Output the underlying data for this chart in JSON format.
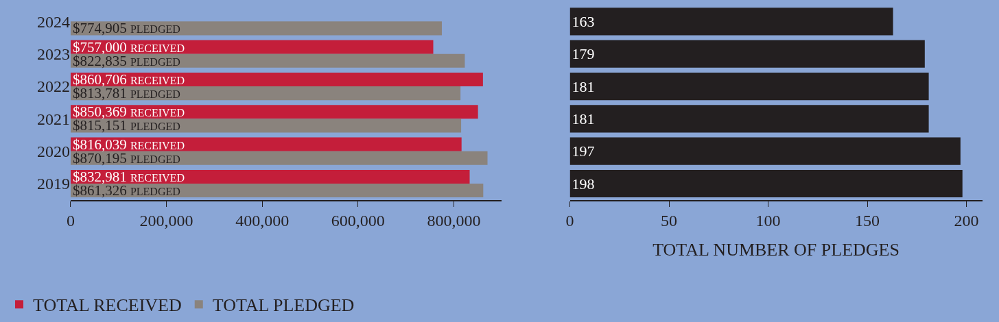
{
  "chart_data": [
    {
      "type": "bar",
      "orientation": "horizontal",
      "categories": [
        "2024",
        "2023",
        "2022",
        "2021",
        "2020",
        "2019"
      ],
      "series": [
        {
          "name": "TOTAL RECEIVED",
          "color": "#c41e3a",
          "values": [
            null,
            757000,
            860706,
            850369,
            816039,
            832981
          ],
          "value_labels": [
            null,
            "$757,000 RECEIVED",
            "$860,706 RECEIVED",
            "$850,369 RECEIVED",
            "$816,039 RECEIVED",
            "$832,981 RECEIVED"
          ]
        },
        {
          "name": "TOTAL PLEDGED",
          "color": "#8a837d",
          "values": [
            774905,
            822835,
            813781,
            815151,
            870195,
            861326
          ],
          "value_labels": [
            "$774,905 PLEDGED",
            "$822,835 PLEDGED",
            "$813,781 PLEDGED",
            "$815,151 PLEDGED",
            "$870,195 PLEDGED",
            "$861,326 PLEDGED"
          ]
        }
      ],
      "xlim": [
        0,
        900000
      ],
      "xticks": [
        0,
        {
          "value": 200000,
          "label": "200,000"
        },
        {
          "value": 400000,
          "label": "400,000"
        },
        {
          "value": 600000,
          "label": "600,000"
        },
        {
          "value": 800000,
          "label": "800,000"
        }
      ],
      "grid": false,
      "legend": "bottom"
    },
    {
      "type": "bar",
      "orientation": "horizontal",
      "categories": [
        "2024",
        "2023",
        "2022",
        "2021",
        "2020",
        "2019"
      ],
      "series": [
        {
          "color": "#231f20",
          "values": [
            163,
            179,
            181,
            181,
            197,
            198
          ]
        }
      ],
      "data_labels": true,
      "xlim": [
        0,
        208
      ],
      "xticks": [
        0,
        50,
        100,
        150,
        200
      ],
      "xlabel": "TOTAL NUMBER OF PLEDGES",
      "grid": false,
      "tick_labels": "x"
    }
  ]
}
